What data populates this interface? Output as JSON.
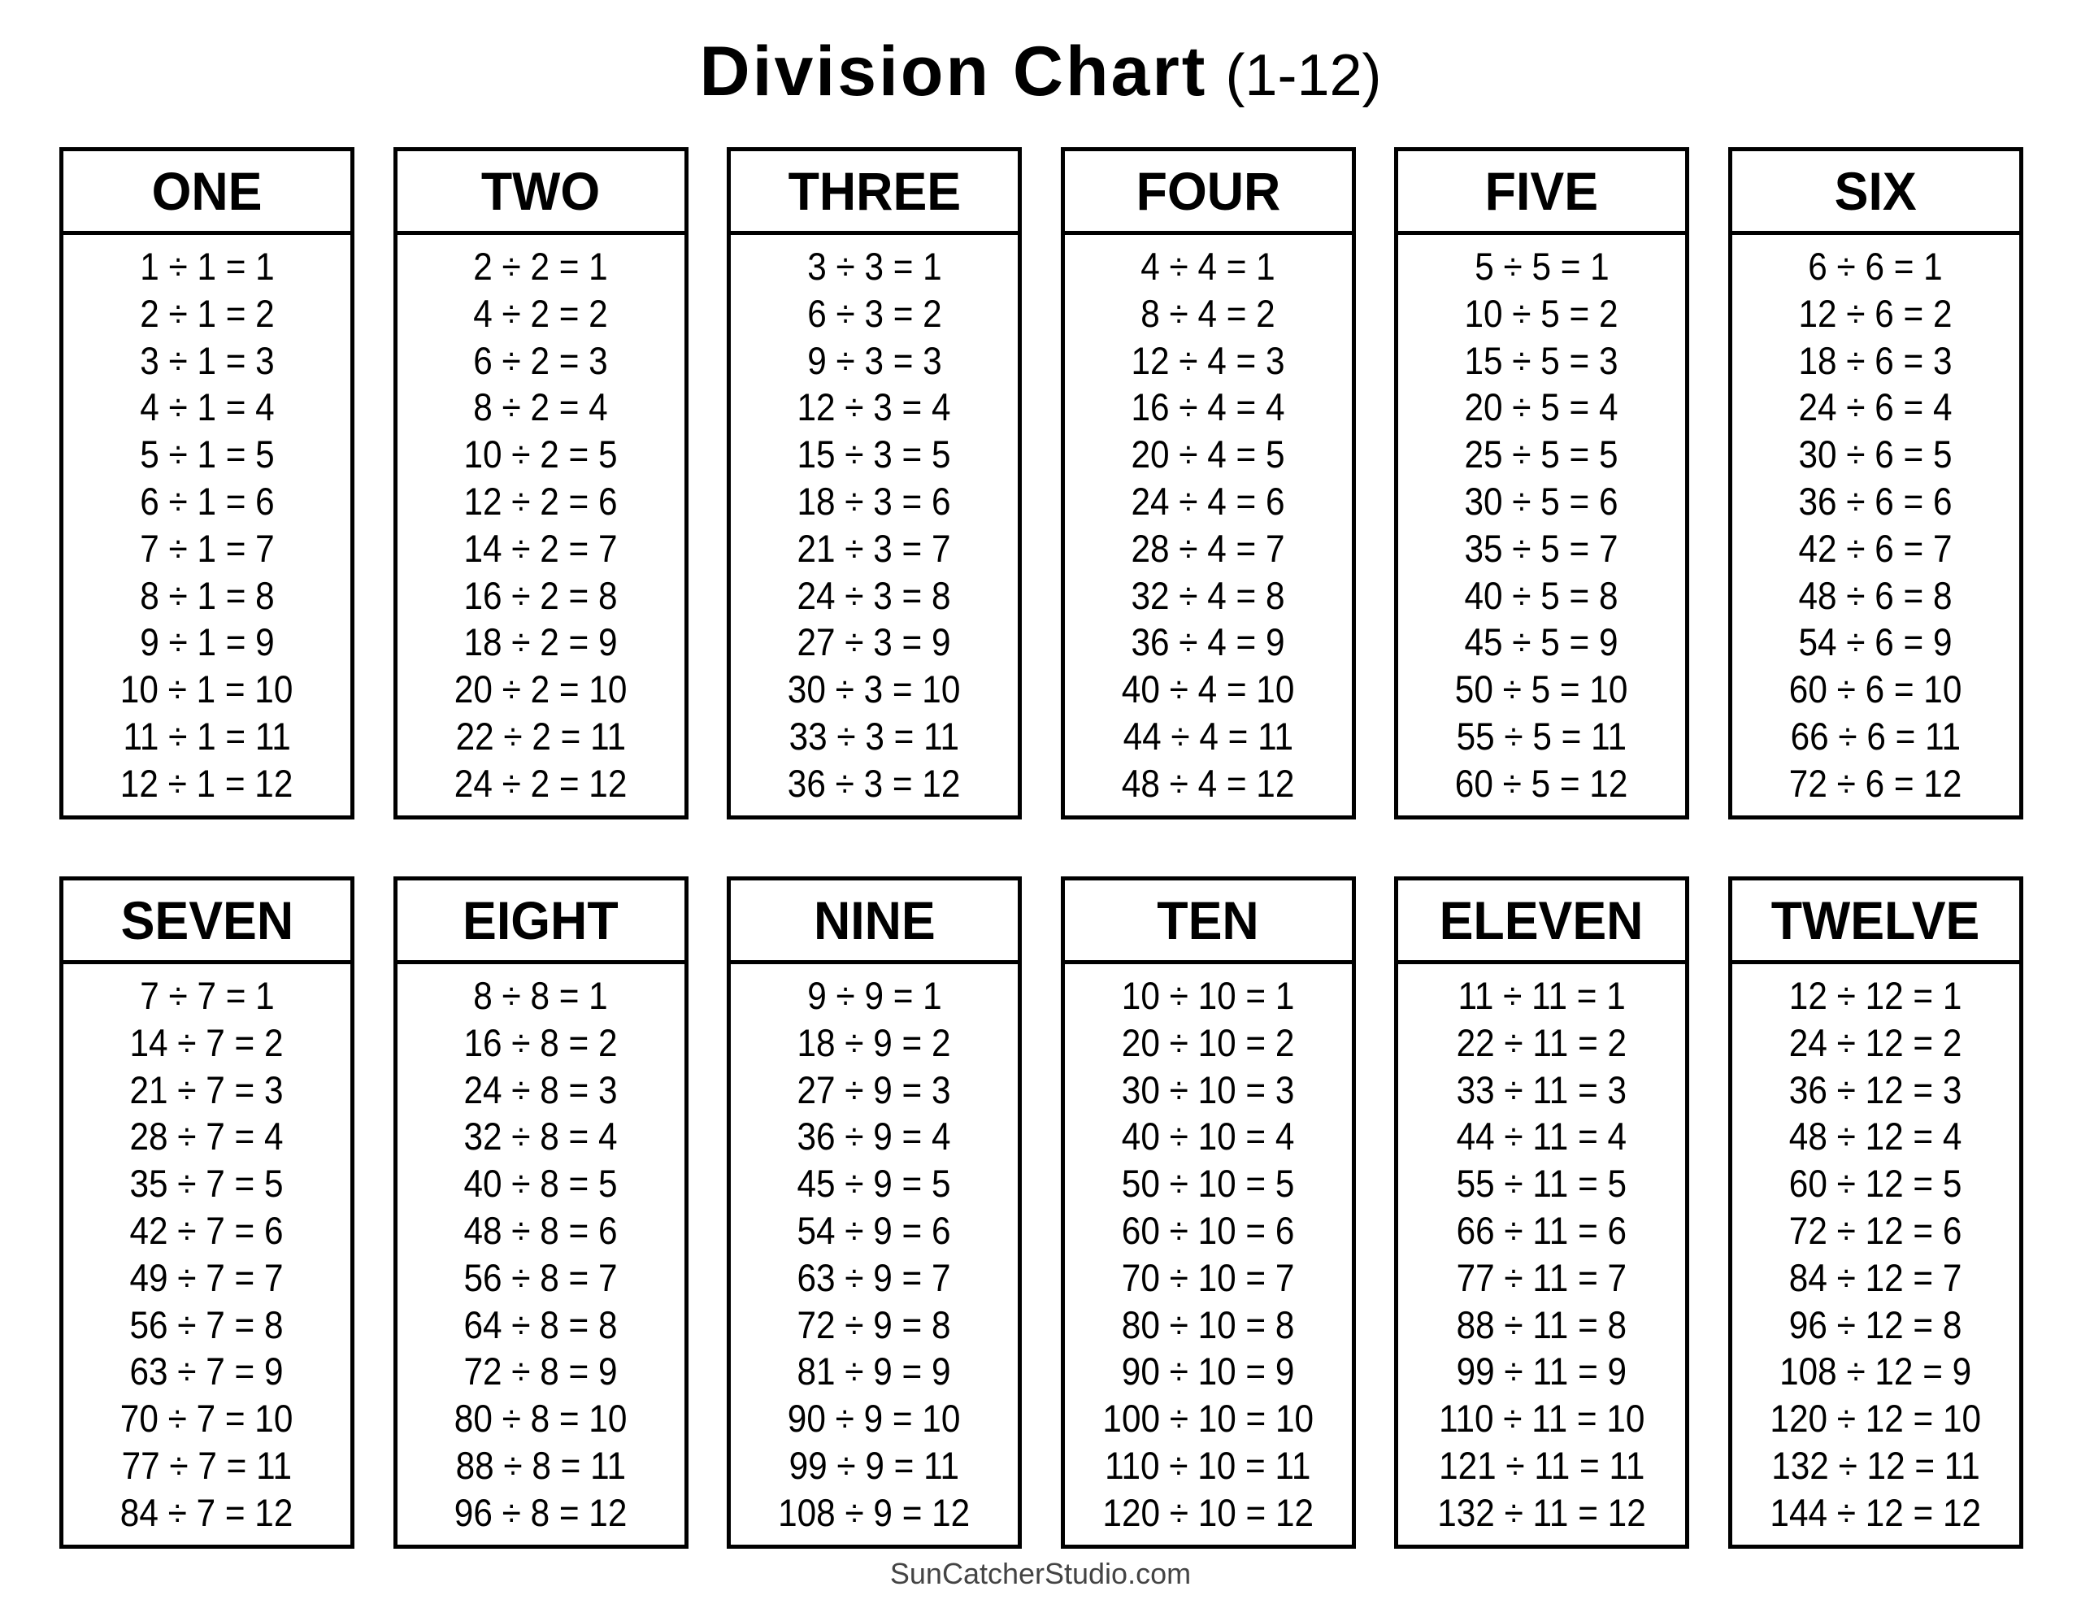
{
  "title": {
    "main": "Division Chart",
    "sub": "(1-12)"
  },
  "footer": "SunCatcherStudio.com",
  "tables": [
    {
      "header": "ONE",
      "rows": [
        "1 ÷ 1 = 1",
        "2 ÷ 1 = 2",
        "3 ÷ 1 = 3",
        "4 ÷ 1 = 4",
        "5 ÷ 1 = 5",
        "6 ÷ 1 = 6",
        "7 ÷ 1 = 7",
        "8 ÷ 1 = 8",
        "9 ÷ 1 = 9",
        "10 ÷ 1 = 10",
        "11 ÷ 1 = 11",
        "12 ÷ 1 = 12"
      ]
    },
    {
      "header": "TWO",
      "rows": [
        "2 ÷ 2 = 1",
        "4 ÷ 2 = 2",
        "6 ÷ 2 = 3",
        "8 ÷ 2 = 4",
        "10 ÷ 2 = 5",
        "12 ÷ 2 = 6",
        "14 ÷ 2 = 7",
        "16 ÷ 2 = 8",
        "18 ÷ 2 = 9",
        "20 ÷ 2 = 10",
        "22 ÷ 2 = 11",
        "24 ÷ 2 = 12"
      ]
    },
    {
      "header": "THREE",
      "rows": [
        "3 ÷ 3 = 1",
        "6 ÷ 3 = 2",
        "9 ÷ 3 = 3",
        "12 ÷ 3 = 4",
        "15 ÷ 3 = 5",
        "18 ÷ 3 = 6",
        "21 ÷ 3 = 7",
        "24 ÷ 3 = 8",
        "27 ÷ 3 = 9",
        "30 ÷ 3 = 10",
        "33 ÷ 3 = 11",
        "36 ÷ 3 = 12"
      ]
    },
    {
      "header": "FOUR",
      "rows": [
        "4 ÷ 4 = 1",
        "8 ÷ 4 = 2",
        "12 ÷ 4 = 3",
        "16 ÷ 4 = 4",
        "20 ÷ 4 = 5",
        "24 ÷ 4 = 6",
        "28 ÷ 4 = 7",
        "32 ÷ 4 = 8",
        "36 ÷ 4 = 9",
        "40 ÷ 4 = 10",
        "44 ÷ 4 = 11",
        "48 ÷ 4 = 12"
      ]
    },
    {
      "header": "FIVE",
      "rows": [
        "5 ÷ 5 = 1",
        "10 ÷ 5 = 2",
        "15 ÷ 5 = 3",
        "20 ÷ 5 = 4",
        "25 ÷ 5 = 5",
        "30 ÷ 5 = 6",
        "35 ÷ 5 = 7",
        "40 ÷ 5 = 8",
        "45 ÷ 5 = 9",
        "50 ÷ 5 = 10",
        "55 ÷ 5 = 11",
        "60 ÷ 5 = 12"
      ]
    },
    {
      "header": "SIX",
      "rows": [
        "6 ÷ 6 = 1",
        "12 ÷ 6 = 2",
        "18 ÷ 6 = 3",
        "24 ÷ 6 = 4",
        "30 ÷ 6 = 5",
        "36 ÷ 6 = 6",
        "42 ÷ 6 = 7",
        "48 ÷ 6 = 8",
        "54 ÷ 6 = 9",
        "60 ÷ 6 = 10",
        "66 ÷ 6 = 11",
        "72 ÷ 6 = 12"
      ]
    },
    {
      "header": "SEVEN",
      "rows": [
        "7 ÷ 7 = 1",
        "14 ÷ 7 = 2",
        "21 ÷ 7 = 3",
        "28 ÷ 7 = 4",
        "35 ÷ 7 = 5",
        "42 ÷ 7 = 6",
        "49 ÷ 7 = 7",
        "56 ÷ 7 = 8",
        "63 ÷ 7 = 9",
        "70 ÷ 7 = 10",
        "77 ÷ 7 = 11",
        "84 ÷ 7 = 12"
      ]
    },
    {
      "header": "EIGHT",
      "rows": [
        "8 ÷ 8 = 1",
        "16 ÷ 8 = 2",
        "24 ÷ 8 = 3",
        "32 ÷ 8 = 4",
        "40 ÷ 8 = 5",
        "48 ÷ 8 = 6",
        "56 ÷ 8 = 7",
        "64 ÷ 8 = 8",
        "72 ÷ 8 = 9",
        "80 ÷ 8 = 10",
        "88 ÷ 8 = 11",
        "96 ÷ 8 = 12"
      ]
    },
    {
      "header": "NINE",
      "rows": [
        "9 ÷ 9 = 1",
        "18 ÷ 9 = 2",
        "27 ÷ 9 = 3",
        "36 ÷ 9 = 4",
        "45 ÷ 9 = 5",
        "54 ÷ 9 = 6",
        "63 ÷ 9 = 7",
        "72 ÷ 9 = 8",
        "81 ÷ 9 = 9",
        "90 ÷ 9 = 10",
        "99 ÷ 9 = 11",
        "108 ÷ 9 = 12"
      ]
    },
    {
      "header": "TEN",
      "rows": [
        "10 ÷ 10 = 1",
        "20 ÷ 10 = 2",
        "30 ÷ 10 = 3",
        "40 ÷ 10 = 4",
        "50 ÷ 10 = 5",
        "60 ÷ 10 = 6",
        "70 ÷ 10 = 7",
        "80 ÷ 10 = 8",
        "90 ÷ 10 = 9",
        "100 ÷ 10 = 10",
        "110 ÷ 10 = 11",
        "120 ÷ 10 = 12"
      ]
    },
    {
      "header": "ELEVEN",
      "rows": [
        "11 ÷ 11 = 1",
        "22 ÷ 11 = 2",
        "33 ÷ 11 = 3",
        "44 ÷ 11 = 4",
        "55 ÷ 11 = 5",
        "66 ÷ 11 = 6",
        "77 ÷ 11 = 7",
        "88 ÷ 11 = 8",
        "99 ÷ 11 = 9",
        "110 ÷ 11 = 10",
        "121 ÷ 11 = 11",
        "132 ÷ 11 = 12"
      ]
    },
    {
      "header": "TWELVE",
      "rows": [
        "12 ÷ 12 = 1",
        "24 ÷ 12 = 2",
        "36 ÷ 12 = 3",
        "48 ÷ 12 = 4",
        "60 ÷ 12 = 5",
        "72 ÷ 12 = 6",
        "84 ÷ 12 = 7",
        "96 ÷ 12 = 8",
        "108 ÷ 12 = 9",
        "120 ÷ 12 = 10",
        "132 ÷ 12 = 11",
        "144 ÷ 12 = 12"
      ]
    }
  ]
}
